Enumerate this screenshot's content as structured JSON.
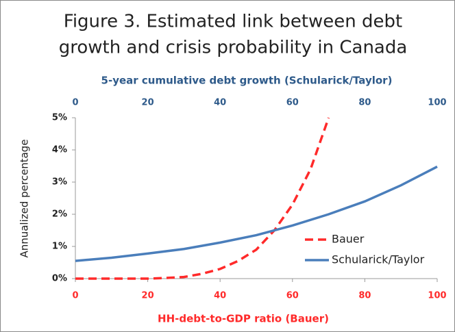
{
  "chart_data": {
    "type": "line",
    "title": [
      "Figure 3.  Estimated link between debt",
      "growth and crisis probability in Canada"
    ],
    "x_label": "HH-debt-to-GDP ratio (Bauer)",
    "x2_label": "5-year cumulative debt growth (Schularick/Taylor)",
    "y_label": "Annualized percentage",
    "xlim": [
      0,
      100
    ],
    "xticks": [
      0,
      20,
      40,
      60,
      80,
      100
    ],
    "x2lim": [
      0,
      100
    ],
    "x2ticks": [
      0,
      20,
      40,
      60,
      80,
      100
    ],
    "ylim": [
      0,
      5
    ],
    "yticks": [
      {
        "value": 0,
        "label": "0%"
      },
      {
        "value": 1,
        "label": "1%"
      },
      {
        "value": 2,
        "label": "2%"
      },
      {
        "value": 3,
        "label": "3%"
      },
      {
        "value": 4,
        "label": "4%"
      },
      {
        "value": 5,
        "label": "5%"
      }
    ],
    "grid": false,
    "legend": "lower right",
    "series": [
      {
        "name": "Bauer",
        "color": "#ff2a2a",
        "dashed": true,
        "axis": "x",
        "x": [
          0,
          10,
          20,
          25,
          30,
          35,
          40,
          45,
          50,
          55,
          60,
          65,
          70
        ],
        "values": [
          0,
          0,
          0,
          0.02,
          0.05,
          0.15,
          0.3,
          0.55,
          0.9,
          1.5,
          2.3,
          3.4,
          5.0
        ]
      },
      {
        "name": "Schularick/Taylor",
        "color": "#4a7ebb",
        "dashed": false,
        "axis": "x2",
        "x": [
          0,
          10,
          20,
          30,
          40,
          50,
          60,
          70,
          80,
          90,
          100
        ],
        "values": [
          0.55,
          0.65,
          0.78,
          0.92,
          1.12,
          1.35,
          1.65,
          2.0,
          2.4,
          2.9,
          3.48
        ]
      }
    ]
  }
}
